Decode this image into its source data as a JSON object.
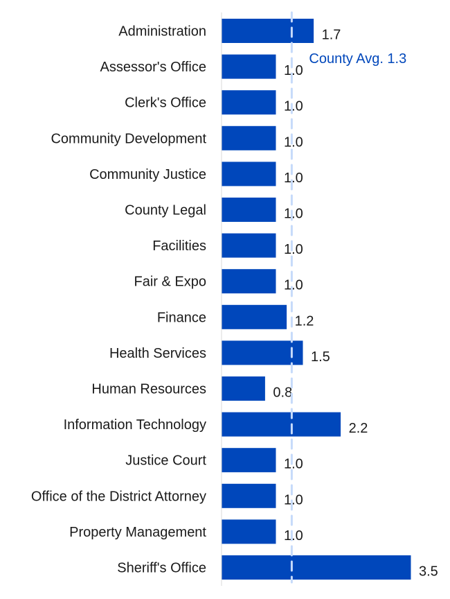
{
  "chart_data": {
    "type": "bar",
    "orientation": "horizontal",
    "categories": [
      "Administration",
      "Assessor's Office",
      "Clerk's Office",
      "Community Development",
      "Community Justice",
      "County Legal",
      "Facilities",
      "Fair & Expo",
      "Finance",
      "Health Services",
      "Human Resources",
      "Information Technology",
      "Justice Court",
      "Office of the District Attorney",
      "Property Management",
      "Sheriff's Office"
    ],
    "values": [
      1.7,
      1.0,
      1.0,
      1.0,
      1.0,
      1.0,
      1.0,
      1.0,
      1.2,
      1.5,
      0.8,
      2.2,
      1.0,
      1.0,
      1.0,
      3.5
    ],
    "value_labels": [
      "1.7",
      "1.0",
      "1.0",
      "1.0",
      "1.0",
      "1.0",
      "1.0",
      "1.0",
      "1.2",
      "1.5",
      "0.8",
      "2.2",
      "1.0",
      "1.0",
      "1.0",
      "3.5"
    ],
    "reference_line": {
      "value": 1.3,
      "label": "County Avg. 1.3",
      "style": "dashed",
      "color": "#c6dafa",
      "label_color": "#0047bb"
    },
    "xlim": [
      0,
      4.0
    ],
    "grid": false,
    "legend": "none",
    "colors": {
      "bar": "#0047bb",
      "axis": "#d9d9d9"
    }
  }
}
